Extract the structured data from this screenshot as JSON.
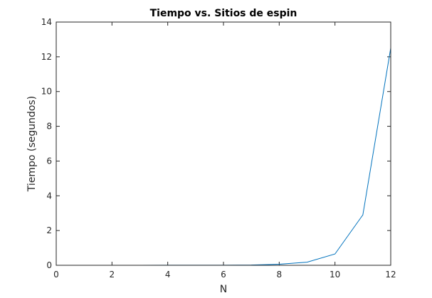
{
  "chart_data": {
    "type": "line",
    "title": "Tiempo vs. Sitios de espin",
    "xlabel": "N",
    "ylabel": "Tiempo (segundos)",
    "xlim": [
      0,
      12
    ],
    "ylim": [
      0,
      14
    ],
    "xticks": [
      0,
      2,
      4,
      6,
      8,
      10,
      12
    ],
    "yticks": [
      0,
      2,
      4,
      6,
      8,
      10,
      12,
      14
    ],
    "grid": false,
    "series": [
      {
        "color": "#0072BD",
        "x": [
          1,
          2,
          3,
          4,
          5,
          6,
          7,
          8,
          9,
          10,
          11,
          12
        ],
        "y": [
          0.001,
          0.001,
          0.002,
          0.003,
          0.004,
          0.006,
          0.015,
          0.06,
          0.18,
          0.65,
          2.9,
          12.5
        ]
      }
    ]
  },
  "colors": {
    "axis": "#262626",
    "line": "#0072BD",
    "background": "#ffffff"
  }
}
